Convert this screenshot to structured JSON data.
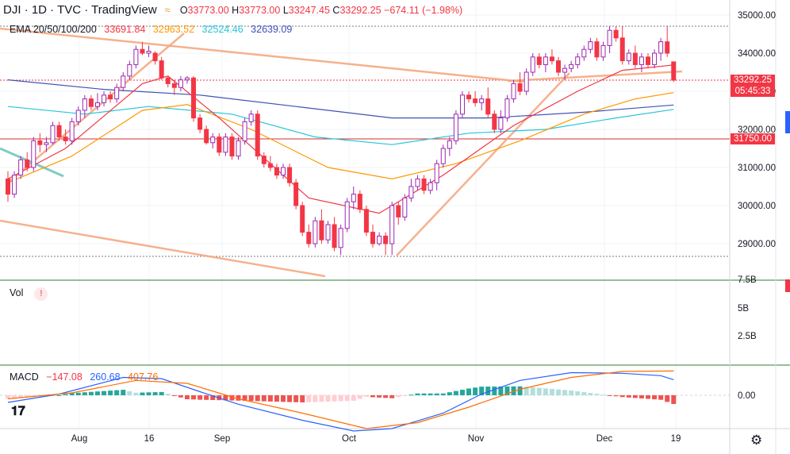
{
  "header": {
    "symbol": "DJI · 1D · TVC · TradingView",
    "open_label": "O",
    "open": "33773.00",
    "high_label": "H",
    "high": "33773.00",
    "low_label": "L",
    "low": "33247.45",
    "close_label": "C",
    "close": "33292.25",
    "change": "−674.11 (−1.98%)"
  },
  "ema": {
    "label": "EMA 20/50/100/200",
    "v20": "33691.84",
    "v50": "32963.52",
    "v100": "32524.46",
    "v200": "32639.09"
  },
  "price_tags": {
    "last_price": "33292.25",
    "countdown": "05:45:33",
    "level": "31750.00"
  },
  "volume": {
    "label": "Vol",
    "warn_icon": "!"
  },
  "macd": {
    "label": "MACD",
    "hist": "−147.08",
    "macd": "260.68",
    "signal": "407.76"
  },
  "colors": {
    "up": "#9c27b0",
    "down": "#f23645",
    "ema20": "#f23645",
    "ema50": "#ff9800",
    "ema100": "#26c6da",
    "ema200": "#3f51b5",
    "trendline": "#f5a47a",
    "macd_line": "#2962ff",
    "signal_line": "#ff6d00",
    "hist_pos": "#26a69a",
    "hist_neg": "#ef5350"
  },
  "chart_data": {
    "type": "candlestick",
    "price_axis": {
      "ticks": [
        29000,
        30000,
        31000,
        32000,
        33000,
        34000,
        35000
      ],
      "ylim": [
        28400,
        35300
      ]
    },
    "volume_axis": {
      "ticks": [
        "2.5B",
        "5B",
        "7.5B"
      ]
    },
    "macd_axis": {
      "ticks": [
        "0.00"
      ]
    },
    "x_ticks": [
      "Aug",
      "16",
      "Sep",
      "Oct",
      "Nov",
      "Dec",
      "19"
    ],
    "horizontal_level": 31750,
    "candles": [
      [
        30700,
        30900,
        30100,
        30300
      ],
      [
        30300,
        30900,
        30200,
        30800
      ],
      [
        30800,
        31300,
        30700,
        31200
      ],
      [
        31200,
        31400,
        30900,
        31000
      ],
      [
        31000,
        31800,
        30900,
        31700
      ],
      [
        31700,
        31900,
        31400,
        31600
      ],
      [
        31600,
        31800,
        31400,
        31650
      ],
      [
        31650,
        32200,
        31600,
        32100
      ],
      [
        32100,
        32200,
        31700,
        31800
      ],
      [
        31800,
        32000,
        31600,
        31700
      ],
      [
        31700,
        32300,
        31600,
        32200
      ],
      [
        32200,
        32600,
        32100,
        32500
      ],
      [
        32500,
        32900,
        32300,
        32800
      ],
      [
        32800,
        32900,
        32500,
        32600
      ],
      [
        32600,
        32950,
        32500,
        32700
      ],
      [
        32700,
        33000,
        32600,
        32900
      ],
      [
        32900,
        33000,
        32700,
        32800
      ],
      [
        32800,
        33200,
        32700,
        33100
      ],
      [
        33100,
        33500,
        33000,
        33400
      ],
      [
        33400,
        33800,
        33300,
        33700
      ],
      [
        33700,
        34200,
        33600,
        34100
      ],
      [
        34100,
        34300,
        33950,
        34000
      ],
      [
        34000,
        34200,
        33900,
        34050
      ],
      [
        34000,
        34050,
        33700,
        33800
      ],
      [
        33800,
        33900,
        33300,
        33350
      ],
      [
        33350,
        33400,
        33100,
        33200
      ],
      [
        33200,
        33300,
        32900,
        33100
      ],
      [
        33100,
        33400,
        33000,
        33300
      ],
      [
        33300,
        33400,
        33200,
        33350
      ],
      [
        33350,
        33400,
        32200,
        32300
      ],
      [
        32300,
        32400,
        31900,
        32000
      ],
      [
        32000,
        32100,
        31600,
        31650
      ],
      [
        31650,
        31900,
        31500,
        31800
      ],
      [
        31800,
        31900,
        31300,
        31400
      ],
      [
        31400,
        31900,
        31300,
        31800
      ],
      [
        31800,
        31900,
        31200,
        31300
      ],
      [
        31300,
        31800,
        31200,
        31700
      ],
      [
        31700,
        32300,
        31600,
        32200
      ],
      [
        32200,
        32500,
        32100,
        32400
      ],
      [
        32400,
        32500,
        31200,
        31300
      ],
      [
        31300,
        31400,
        31000,
        31100
      ],
      [
        31100,
        31300,
        30900,
        31000
      ],
      [
        31000,
        31100,
        30700,
        30800
      ],
      [
        30800,
        31100,
        30700,
        31000
      ],
      [
        31000,
        31100,
        30500,
        30600
      ],
      [
        30600,
        30700,
        29900,
        30000
      ],
      [
        30000,
        30100,
        29200,
        29300
      ],
      [
        29300,
        29500,
        28900,
        29000
      ],
      [
        29000,
        29700,
        28900,
        29600
      ],
      [
        29600,
        29900,
        29000,
        29100
      ],
      [
        29100,
        29600,
        29000,
        29500
      ],
      [
        29500,
        29700,
        28800,
        28900
      ],
      [
        28900,
        29500,
        28700,
        29400
      ],
      [
        29400,
        30200,
        29300,
        30100
      ],
      [
        30100,
        30500,
        29900,
        30300
      ],
      [
        30300,
        30400,
        29800,
        29900
      ],
      [
        29900,
        30000,
        29200,
        29300
      ],
      [
        29300,
        29500,
        28900,
        29000
      ],
      [
        29000,
        29300,
        28950,
        29200
      ],
      [
        29200,
        29300,
        28700,
        29000
      ],
      [
        29000,
        30100,
        28700,
        30000
      ],
      [
        30000,
        30100,
        29500,
        29700
      ],
      [
        29700,
        30300,
        29600,
        30200
      ],
      [
        30200,
        30700,
        30100,
        30500
      ],
      [
        30500,
        30800,
        30400,
        30700
      ],
      [
        30700,
        30800,
        30300,
        30400
      ],
      [
        30400,
        30700,
        30300,
        30600
      ],
      [
        30600,
        31200,
        30400,
        31100
      ],
      [
        31100,
        31600,
        31000,
        31500
      ],
      [
        31500,
        31800,
        31300,
        31700
      ],
      [
        31700,
        32500,
        31600,
        32400
      ],
      [
        32400,
        33000,
        32300,
        32900
      ],
      [
        32900,
        33000,
        32700,
        32800
      ],
      [
        32800,
        33000,
        32600,
        32700
      ],
      [
        32700,
        32900,
        32500,
        32800
      ],
      [
        32800,
        33100,
        32300,
        32400
      ],
      [
        32400,
        32500,
        31900,
        32000
      ],
      [
        32000,
        32500,
        31900,
        32300
      ],
      [
        32300,
        32900,
        32200,
        32800
      ],
      [
        32800,
        33300,
        32700,
        33200
      ],
      [
        33200,
        33500,
        32900,
        33000
      ],
      [
        33000,
        33600,
        32900,
        33500
      ],
      [
        33500,
        34000,
        33400,
        33900
      ],
      [
        33900,
        34000,
        33600,
        33700
      ],
      [
        33700,
        34000,
        33500,
        33900
      ],
      [
        33900,
        34100,
        33700,
        33800
      ],
      [
        33800,
        33900,
        33400,
        33500
      ],
      [
        33500,
        33700,
        33300,
        33600
      ],
      [
        33600,
        33800,
        33500,
        33700
      ],
      [
        33700,
        34000,
        33600,
        33900
      ],
      [
        33900,
        34200,
        33800,
        34100
      ],
      [
        34100,
        34400,
        34000,
        34300
      ],
      [
        34300,
        34400,
        33800,
        33900
      ],
      [
        33900,
        34300,
        33800,
        34200
      ],
      [
        34200,
        34700,
        34000,
        34600
      ],
      [
        34600,
        34700,
        34300,
        34400
      ],
      [
        34400,
        34700,
        33700,
        33800
      ],
      [
        33800,
        34100,
        33700,
        34000
      ],
      [
        34000,
        34200,
        33600,
        33700
      ],
      [
        33700,
        34000,
        33500,
        33900
      ],
      [
        33900,
        34000,
        33600,
        33700
      ],
      [
        33700,
        34100,
        33600,
        34000
      ],
      [
        34000,
        34400,
        33800,
        34300
      ],
      [
        34300,
        34700,
        33900,
        34000
      ],
      [
        33773,
        33773,
        33247.45,
        33292.25
      ]
    ],
    "ema_lines": {
      "ema20": [
        [
          0,
          30700
        ],
        [
          9,
          31500
        ],
        [
          21,
          33200
        ],
        [
          25,
          33400
        ],
        [
          33,
          32300
        ],
        [
          47,
          30200
        ],
        [
          58,
          29800
        ],
        [
          68,
          30800
        ],
        [
          79,
          32100
        ],
        [
          89,
          33000
        ],
        [
          96,
          33550
        ],
        [
          104,
          33692
        ]
      ],
      "ema50": [
        [
          0,
          30600
        ],
        [
          10,
          31300
        ],
        [
          21,
          32500
        ],
        [
          28,
          32650
        ],
        [
          38,
          32000
        ],
        [
          50,
          31000
        ],
        [
          60,
          30700
        ],
        [
          70,
          31100
        ],
        [
          80,
          31700
        ],
        [
          90,
          32400
        ],
        [
          98,
          32800
        ],
        [
          104,
          32964
        ]
      ],
      "ema100": [
        [
          0,
          32600
        ],
        [
          12,
          32400
        ],
        [
          22,
          32600
        ],
        [
          35,
          32400
        ],
        [
          48,
          31800
        ],
        [
          60,
          31600
        ],
        [
          72,
          31900
        ],
        [
          84,
          32000
        ],
        [
          95,
          32300
        ],
        [
          104,
          32524
        ]
      ],
      "ema200": [
        [
          0,
          33300
        ],
        [
          15,
          33050
        ],
        [
          30,
          32900
        ],
        [
          45,
          32600
        ],
        [
          60,
          32300
        ],
        [
          75,
          32300
        ],
        [
          90,
          32450
        ],
        [
          104,
          32639
        ]
      ]
    },
    "macd": {
      "macd_line": [
        [
          0,
          -120
        ],
        [
          8,
          20
        ],
        [
          18,
          300
        ],
        [
          24,
          280
        ],
        [
          30,
          60
        ],
        [
          36,
          -150
        ],
        [
          46,
          -420
        ],
        [
          54,
          -600
        ],
        [
          60,
          -560
        ],
        [
          68,
          -300
        ],
        [
          74,
          20
        ],
        [
          80,
          250
        ],
        [
          88,
          380
        ],
        [
          96,
          370
        ],
        [
          102,
          330
        ],
        [
          104,
          261
        ]
      ],
      "signal_line": [
        [
          0,
          -60
        ],
        [
          10,
          40
        ],
        [
          20,
          250
        ],
        [
          28,
          200
        ],
        [
          36,
          -60
        ],
        [
          46,
          -300
        ],
        [
          56,
          -560
        ],
        [
          64,
          -460
        ],
        [
          72,
          -200
        ],
        [
          80,
          100
        ],
        [
          88,
          300
        ],
        [
          96,
          400
        ],
        [
          104,
          408
        ]
      ],
      "ylim": [
        -700,
        500
      ]
    }
  }
}
